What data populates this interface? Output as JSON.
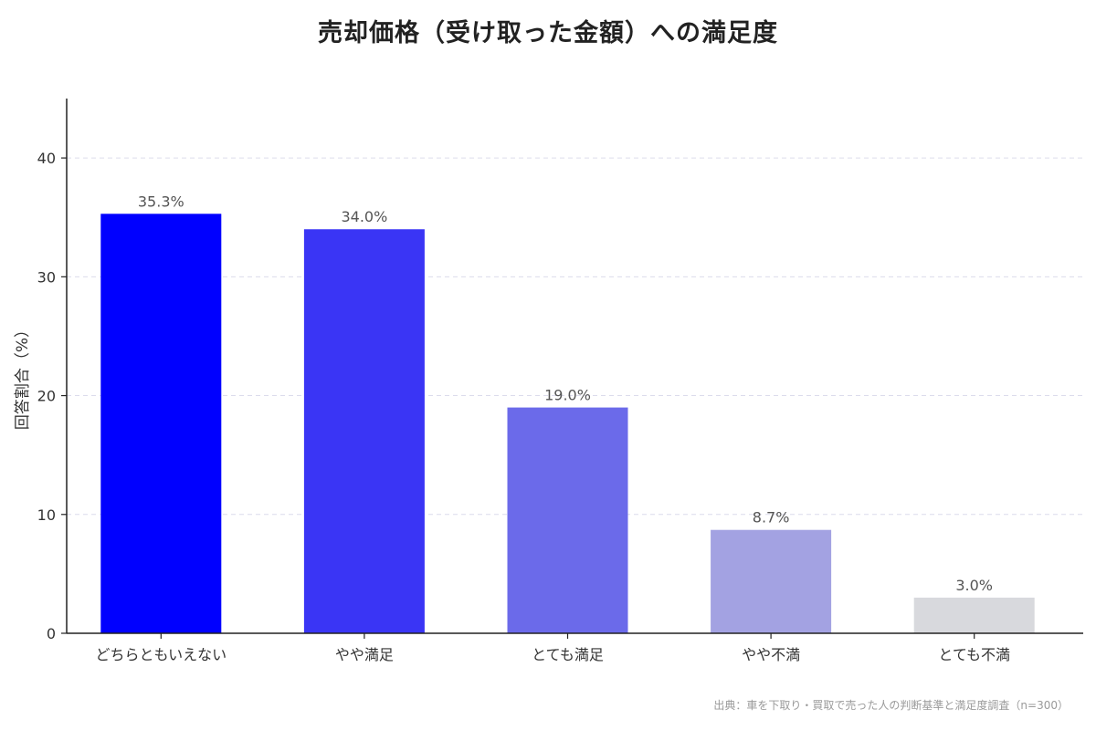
{
  "chart_data": {
    "type": "bar",
    "title": "売却価格（受け取った金額）への満足度",
    "ylabel": "回答割合（%）",
    "xlabel": "",
    "categories": [
      "どちらともいえない",
      "やや満足",
      "とても満足",
      "やや不満",
      "とても不満"
    ],
    "values": [
      35.3,
      34.0,
      19.0,
      8.7,
      3.0
    ],
    "value_labels": [
      "35.3%",
      "34.0%",
      "19.0%",
      "8.7%",
      "3.0%"
    ],
    "colors": [
      "#0000ff",
      "#3a35f5",
      "#6b6aea",
      "#a3a2e2",
      "#d8d9dd"
    ],
    "ylim": [
      0,
      45
    ],
    "yticks": [
      0,
      10,
      20,
      30,
      40
    ],
    "grid": true,
    "legend": "none"
  },
  "footer": {
    "source": "出典：車を下取り・買取で売った人の判断基準と満足度調査（n=300）"
  }
}
